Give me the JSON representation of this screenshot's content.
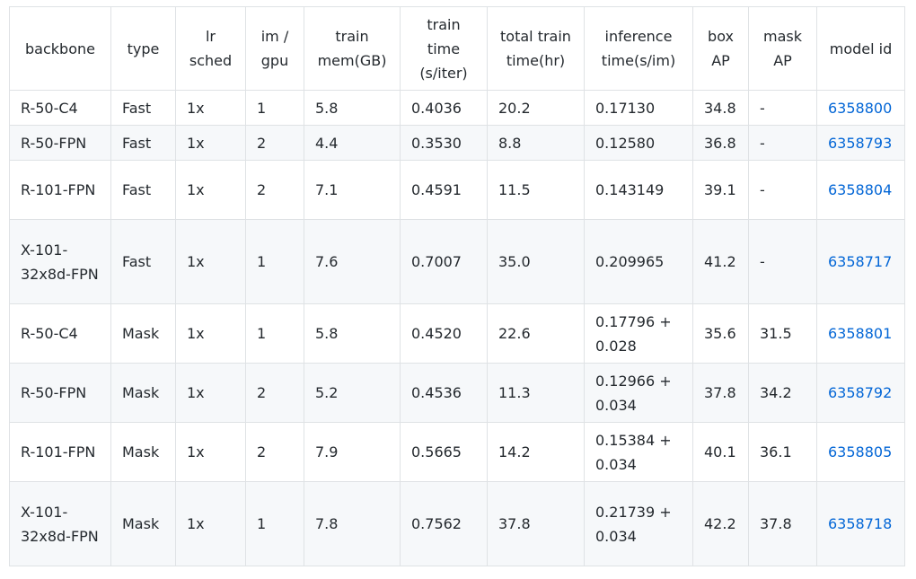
{
  "table": {
    "headers": [
      "backbone",
      "type",
      "lr sched",
      "im / gpu",
      "train mem(GB)",
      "train time (s/iter)",
      "total train time(hr)",
      "inference time(s/im)",
      "box AP",
      "mask AP",
      "model id"
    ],
    "rows": [
      [
        "R-50-C4",
        "Fast",
        "1x",
        "1",
        "5.8",
        "0.4036",
        "20.2",
        "0.17130",
        "34.8",
        "-",
        "6358800"
      ],
      [
        "R-50-FPN",
        "Fast",
        "1x",
        "2",
        "4.4",
        "0.3530",
        "8.8",
        "0.12580",
        "36.8",
        "-",
        "6358793"
      ],
      [
        "R-101-FPN",
        "Fast",
        "1x",
        "2",
        "7.1",
        "0.4591",
        "11.5",
        "0.143149",
        "39.1",
        "-",
        "6358804"
      ],
      [
        "X-101-32x8d-FPN",
        "Fast",
        "1x",
        "1",
        "7.6",
        "0.7007",
        "35.0",
        "0.209965",
        "41.2",
        "-",
        "6358717"
      ],
      [
        "R-50-C4",
        "Mask",
        "1x",
        "1",
        "5.8",
        "0.4520",
        "22.6",
        "0.17796 + 0.028",
        "35.6",
        "31.5",
        "6358801"
      ],
      [
        "R-50-FPN",
        "Mask",
        "1x",
        "2",
        "5.2",
        "0.4536",
        "11.3",
        "0.12966 + 0.034",
        "37.8",
        "34.2",
        "6358792"
      ],
      [
        "R-101-FPN",
        "Mask",
        "1x",
        "2",
        "7.9",
        "0.5665",
        "14.2",
        "0.15384 + 0.034",
        "40.1",
        "36.1",
        "6358805"
      ],
      [
        "X-101-32x8d-FPN",
        "Mask",
        "1x",
        "1",
        "7.8",
        "0.7562",
        "37.8",
        "0.21739 + 0.034",
        "42.2",
        "37.8",
        "6358718"
      ]
    ]
  },
  "colors": {
    "link": "#0366d6",
    "text": "#24292e",
    "border": "#dfe2e5",
    "stripe": "#f6f8fa"
  }
}
